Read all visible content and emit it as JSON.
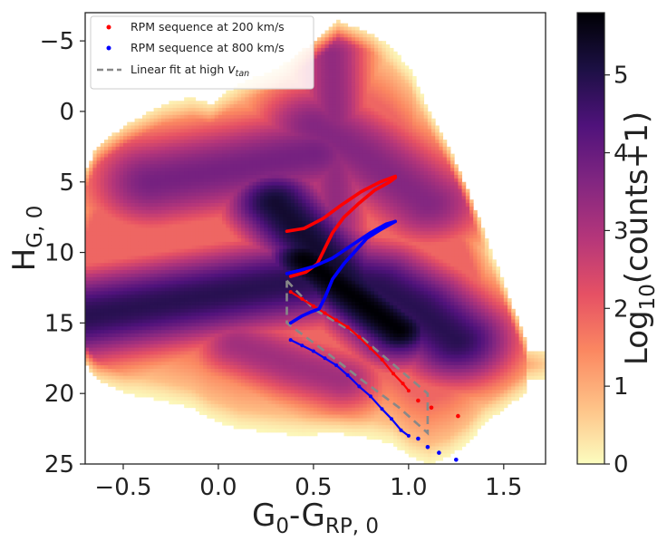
{
  "chart_data": {
    "type": "heatmap",
    "subtype": "hess-diagram-with-overlays",
    "xlabel": {
      "main": "G",
      "sub1": "0",
      "mid": "-G",
      "sub2": "RP, 0"
    },
    "ylabel": {
      "main": "H",
      "sub": "G, 0"
    },
    "colorbar_label": {
      "pre": "Log",
      "sub": "10",
      "post": "(counts+1)"
    },
    "xlim": [
      -0.7,
      1.72
    ],
    "ylim": [
      25,
      -7
    ],
    "y_inverted": true,
    "x_ticks": [
      -0.5,
      0.0,
      0.5,
      1.0,
      1.5
    ],
    "x_tick_labels": [
      "−0.5",
      "0.0",
      "0.5",
      "1.0",
      "1.5"
    ],
    "y_ticks": [
      -5,
      0,
      5,
      10,
      15,
      20,
      25
    ],
    "y_tick_labels": [
      "−5",
      "0",
      "5",
      "10",
      "15",
      "20",
      "25"
    ],
    "colorbar_range": [
      0,
      5.8
    ],
    "colorbar_ticks": [
      0,
      1,
      2,
      3,
      4,
      5
    ],
    "colorbar_tick_labels": [
      "0",
      "1",
      "2",
      "3",
      "4",
      "5"
    ],
    "colormap": "magma_r",
    "colormap_stops": [
      "#fcfdbf",
      "#fec287",
      "#fb8861",
      "#e65164",
      "#b5367a",
      "#822681",
      "#4f127b",
      "#1c1044",
      "#000004"
    ],
    "density_model": {
      "sequences": [
        {
          "x": [
            -0.7,
            0.2,
            0.55,
            0.85,
            1.05,
            1.25
          ],
          "y": [
            14.5,
            12.5,
            11.8,
            12.5,
            14.0,
            16.2
          ],
          "width": 2.6,
          "peak": 4.9
        },
        {
          "x": [
            0.3,
            0.5,
            0.7,
            0.95
          ],
          "y": [
            6.5,
            9.5,
            12.5,
            15.5
          ],
          "width": 2.2,
          "peak": 5.3
        },
        {
          "x": [
            0.45,
            0.7,
            0.95
          ],
          "y": [
            10.5,
            13.0,
            15.5
          ],
          "width": 1.8,
          "peak": 5.8
        },
        {
          "x": [
            -0.35,
            0.1,
            0.5
          ],
          "y": [
            5.0,
            4.0,
            3.0
          ],
          "width": 2.8,
          "peak": 3.8
        },
        {
          "x": [
            0.5,
            0.75,
            1.1
          ],
          "y": [
            1.0,
            3.0,
            6.5
          ],
          "width": 2.6,
          "peak": 3.6
        },
        {
          "x": [
            0.6,
            0.62
          ],
          "y": [
            -4.0,
            8.0
          ],
          "width": 1.6,
          "peak": 3.4
        },
        {
          "x": [
            0.1,
            0.4,
            0.65
          ],
          "y": [
            16.5,
            18.0,
            19.0
          ],
          "width": 2.0,
          "peak": 3.2
        }
      ],
      "envelope": {
        "x": [
          -0.7,
          -0.65,
          -0.5,
          -0.3,
          -0.15,
          -0.05,
          0.1,
          0.3,
          0.45,
          0.55,
          0.62,
          0.7,
          0.8,
          0.9,
          1.0,
          1.1,
          1.2,
          1.3,
          1.4,
          1.5,
          1.6,
          1.62
        ],
        "top": [
          4.0,
          2.5,
          1.0,
          -0.5,
          -1.0,
          -0.5,
          -2.0,
          -3.0,
          -4.5,
          -5.5,
          -6.5,
          -6.0,
          -5.5,
          -4.5,
          -3.0,
          0.0,
          2.5,
          5.5,
          9.0,
          12.5,
          16.0,
          17.0
        ],
        "bottom": [
          18.0,
          19.0,
          20.0,
          20.5,
          21.0,
          21.8,
          22.5,
          22.8,
          23.0,
          22.8,
          22.8,
          23.0,
          23.2,
          23.5,
          24.5,
          25.0,
          24.5,
          23.5,
          22.0,
          21.0,
          20.0,
          19.0
        ]
      }
    },
    "series": [
      {
        "name": "RPM sequence at 200 km/s",
        "color": "#ff0000",
        "marker": "dot",
        "ridge": {
          "x": [
            0.36,
            0.45,
            0.55,
            0.65,
            0.75,
            0.85,
            0.93
          ],
          "y": [
            8.5,
            8.3,
            7.6,
            6.6,
            5.7,
            5.0,
            4.6
          ]
        },
        "line": {
          "x": [
            0.38,
            0.46,
            0.52,
            0.56,
            0.6,
            0.66,
            0.74,
            0.82,
            0.9,
            0.93
          ],
          "y": [
            11.7,
            11.4,
            10.8,
            9.7,
            8.6,
            7.5,
            6.5,
            5.6,
            5.0,
            4.7
          ]
        },
        "lower": {
          "x": [
            0.38,
            0.44,
            0.5,
            0.56,
            0.62,
            0.68,
            0.74,
            0.8,
            0.86,
            0.92,
            0.97,
            1.0
          ],
          "y": [
            12.8,
            13.3,
            13.8,
            14.3,
            14.8,
            15.3,
            16.0,
            16.8,
            17.6,
            18.6,
            19.3,
            19.8
          ]
        },
        "scatter": {
          "x": [
            1.05,
            1.12,
            1.26
          ],
          "y": [
            20.5,
            21.0,
            21.6
          ]
        }
      },
      {
        "name": "RPM sequence at 800 km/s",
        "color": "#0000ff",
        "marker": "dot",
        "upper": {
          "x": [
            0.36,
            0.42,
            0.5,
            0.6,
            0.7,
            0.8,
            0.88,
            0.93
          ],
          "y": [
            11.5,
            11.3,
            11.0,
            10.4,
            9.5,
            8.6,
            8.0,
            7.8
          ]
        },
        "line": {
          "x": [
            0.38,
            0.44,
            0.49,
            0.53,
            0.56,
            0.6,
            0.66,
            0.72,
            0.78,
            0.85,
            0.93
          ],
          "y": [
            15.0,
            14.5,
            14.2,
            14.0,
            13.2,
            11.9,
            10.8,
            9.9,
            9.0,
            8.4,
            7.8
          ]
        },
        "lower": {
          "x": [
            0.38,
            0.44,
            0.5,
            0.56,
            0.62,
            0.68,
            0.74,
            0.8,
            0.86,
            0.91,
            0.96,
            1.0
          ],
          "y": [
            16.2,
            16.6,
            17.0,
            17.5,
            18.0,
            18.7,
            19.5,
            20.2,
            21.1,
            21.8,
            22.6,
            23.0
          ]
        },
        "scatter": {
          "x": [
            1.05,
            1.1,
            1.16,
            1.25
          ],
          "y": [
            23.2,
            23.8,
            24.2,
            24.7
          ]
        }
      }
    ],
    "fit": {
      "name": "Linear fit at high ",
      "name_v": "v",
      "name_sub": "tan",
      "color": "#888888",
      "dash": "dashed",
      "polygon": {
        "x": [
          0.36,
          0.5,
          0.75,
          1.1,
          1.1,
          0.95,
          0.75,
          0.56,
          0.36,
          0.36
        ],
        "y": [
          12.0,
          14.0,
          16.0,
          20.0,
          22.8,
          21.0,
          19.0,
          17.0,
          15.0,
          12.0
        ]
      }
    },
    "legend_position": "top-left",
    "grid": false
  }
}
